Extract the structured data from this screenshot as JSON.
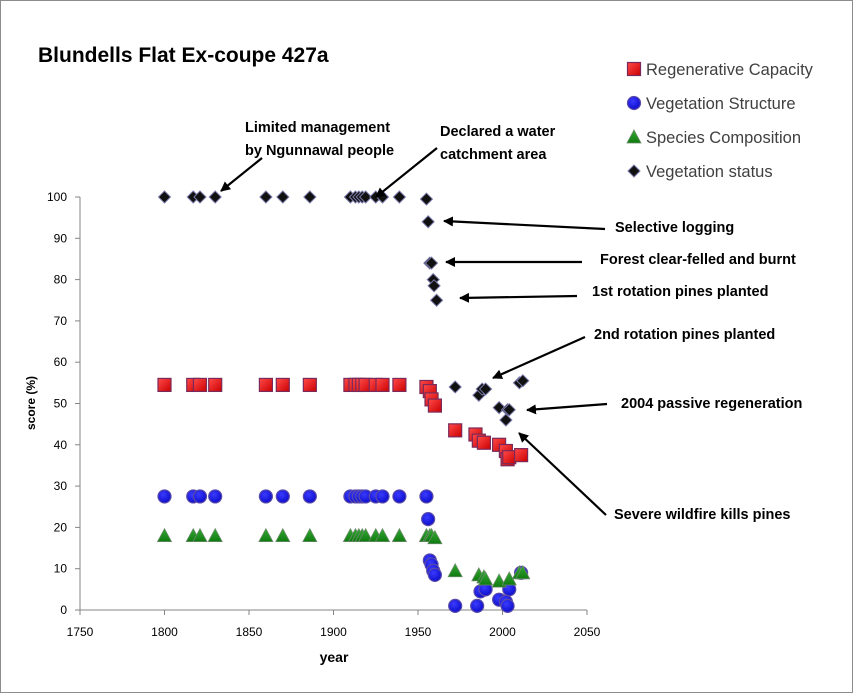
{
  "chart_data": {
    "type": "scatter",
    "title": "Blundells Flat  Ex-coupe 427a",
    "xlabel": "year",
    "ylabel": "score  (%)",
    "xlim": [
      1750,
      2050
    ],
    "ylim": [
      0,
      100
    ],
    "x_ticks": [
      "1750",
      "1800",
      "1850",
      "1900",
      "1950",
      "2000",
      "2050"
    ],
    "y_ticks": [
      "0",
      "10",
      "20",
      "30",
      "40",
      "50",
      "60",
      "70",
      "80",
      "90",
      "100"
    ],
    "grid": false,
    "legend_position": "top-right",
    "series": [
      {
        "name": "Regenerative Capacity",
        "marker": "square",
        "color": "#e8141c",
        "points": [
          [
            1800,
            54.5
          ],
          [
            1817,
            54.5
          ],
          [
            1821,
            54.5
          ],
          [
            1830,
            54.5
          ],
          [
            1860,
            54.5
          ],
          [
            1870,
            54.5
          ],
          [
            1886,
            54.5
          ],
          [
            1910,
            54.5
          ],
          [
            1913,
            54.5
          ],
          [
            1915,
            54.5
          ],
          [
            1917,
            54.5
          ],
          [
            1919,
            54.5
          ],
          [
            1925,
            54.5
          ],
          [
            1929,
            54.5
          ],
          [
            1939,
            54.5
          ],
          [
            1955,
            54
          ],
          [
            1957,
            53
          ],
          [
            1958,
            51
          ],
          [
            1960,
            49.5
          ],
          [
            1972,
            43.5
          ],
          [
            1984,
            42.5
          ],
          [
            1986,
            41
          ],
          [
            1989,
            40.5
          ],
          [
            1998,
            40
          ],
          [
            2002,
            38.5
          ],
          [
            2003,
            36.5
          ],
          [
            2004,
            37
          ],
          [
            2011,
            37.5
          ]
        ]
      },
      {
        "name": "Vegetation Structure",
        "marker": "circle",
        "color": "#1a1adc",
        "points": [
          [
            1800,
            27.5
          ],
          [
            1817,
            27.5
          ],
          [
            1821,
            27.5
          ],
          [
            1830,
            27.5
          ],
          [
            1860,
            27.5
          ],
          [
            1870,
            27.5
          ],
          [
            1886,
            27.5
          ],
          [
            1910,
            27.5
          ],
          [
            1913,
            27.5
          ],
          [
            1915,
            27.5
          ],
          [
            1917,
            27.5
          ],
          [
            1919,
            27.5
          ],
          [
            1925,
            27.5
          ],
          [
            1929,
            27.5
          ],
          [
            1939,
            27.5
          ],
          [
            1955,
            27.5
          ],
          [
            1956,
            22
          ],
          [
            1957,
            12
          ],
          [
            1958,
            11
          ],
          [
            1959,
            9.5
          ],
          [
            1960,
            8.5
          ],
          [
            1972,
            1
          ],
          [
            1985,
            1
          ],
          [
            1987,
            4.5
          ],
          [
            1990,
            5
          ],
          [
            1998,
            2.5
          ],
          [
            2002,
            2
          ],
          [
            2003,
            1
          ],
          [
            2004,
            5
          ],
          [
            2011,
            9
          ]
        ]
      },
      {
        "name": "Species Composition",
        "marker": "triangle",
        "color": "#1a8c1a",
        "points": [
          [
            1800,
            18
          ],
          [
            1817,
            18
          ],
          [
            1821,
            18
          ],
          [
            1830,
            18
          ],
          [
            1860,
            18
          ],
          [
            1870,
            18
          ],
          [
            1886,
            18
          ],
          [
            1910,
            18
          ],
          [
            1913,
            18
          ],
          [
            1915,
            18
          ],
          [
            1917,
            18
          ],
          [
            1919,
            18
          ],
          [
            1925,
            18
          ],
          [
            1929,
            18
          ],
          [
            1939,
            18
          ],
          [
            1955,
            18
          ],
          [
            1957,
            18
          ],
          [
            1958,
            18
          ],
          [
            1960,
            17.5
          ],
          [
            1972,
            9.5
          ],
          [
            1986,
            8.5
          ],
          [
            1989,
            8
          ],
          [
            1990,
            7.5
          ],
          [
            1998,
            7
          ],
          [
            2004,
            7.5
          ],
          [
            2010,
            9
          ],
          [
            2012,
            9
          ]
        ]
      },
      {
        "name": "Vegetation status",
        "marker": "diamond",
        "color": "#111111",
        "points": [
          [
            1800,
            100
          ],
          [
            1817,
            100
          ],
          [
            1821,
            100
          ],
          [
            1830,
            100
          ],
          [
            1860,
            100
          ],
          [
            1870,
            100
          ],
          [
            1886,
            100
          ],
          [
            1910,
            100
          ],
          [
            1913,
            100
          ],
          [
            1915,
            100
          ],
          [
            1917,
            100
          ],
          [
            1919,
            100
          ],
          [
            1925,
            100
          ],
          [
            1929,
            100
          ],
          [
            1939,
            100
          ],
          [
            1955,
            99.5
          ],
          [
            1956,
            94
          ],
          [
            1957,
            84
          ],
          [
            1958,
            84
          ],
          [
            1959,
            80
          ],
          [
            1959.5,
            78.5
          ],
          [
            1961,
            75
          ],
          [
            1972,
            54
          ],
          [
            1986,
            52
          ],
          [
            1988,
            53.5
          ],
          [
            1990,
            53.5
          ],
          [
            1998,
            49
          ],
          [
            2002,
            46
          ],
          [
            2003,
            48.5
          ],
          [
            2004,
            48.5
          ],
          [
            2010,
            55
          ],
          [
            2012,
            55.5
          ]
        ]
      }
    ],
    "annotations": [
      {
        "lines": [
          "Limited management",
          "by Ngunnawal people"
        ]
      },
      {
        "lines": [
          "Declared a water",
          "catchment area"
        ]
      },
      {
        "lines": [
          "Selective logging"
        ]
      },
      {
        "lines": [
          "Forest clear-felled and burnt"
        ]
      },
      {
        "lines": [
          "1st rotation pines planted"
        ]
      },
      {
        "lines": [
          "2nd rotation pines planted"
        ]
      },
      {
        "lines": [
          "2004 passive regeneration"
        ]
      },
      {
        "lines": [
          "Severe wildfire kills pines"
        ]
      }
    ]
  }
}
